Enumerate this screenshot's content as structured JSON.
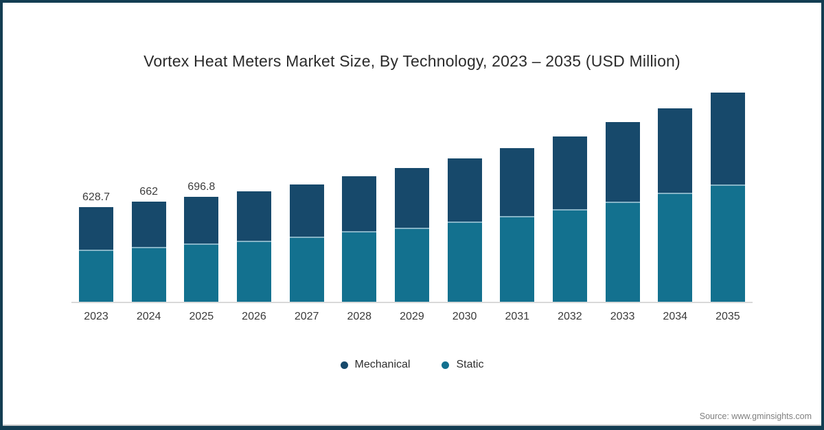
{
  "title": "Vortex Heat Meters Market Size, By Technology, 2023 – 2035 (USD Million)",
  "source": "Source: www.gminsights.com",
  "colors": {
    "mechanical": "#17496b",
    "static": "#13718f",
    "frame": "#133d52",
    "axis_line": "#d9d9d9",
    "segment_divider": "#86b3c6",
    "title_text": "#2b2b2b",
    "label_text": "#3d3d3d",
    "source_text": "#7f7f7f"
  },
  "legend": {
    "items": [
      {
        "label": "Mechanical",
        "color": "#17496b"
      },
      {
        "label": "Static",
        "color": "#13718f"
      }
    ]
  },
  "chart_data": {
    "type": "bar",
    "stacked": true,
    "title": "Vortex Heat Meters Market Size, By Technology, 2023 – 2035 (USD Million)",
    "xlabel": "",
    "ylabel": "",
    "unit": "USD Million",
    "grid": false,
    "legend_position": "bottom",
    "ylim": [
      0,
      1400
    ],
    "categories": [
      "2023",
      "2024",
      "2025",
      "2026",
      "2027",
      "2028",
      "2029",
      "2030",
      "2031",
      "2032",
      "2033",
      "2034",
      "2035"
    ],
    "series": [
      {
        "name": "Mechanical",
        "color": "#17496b",
        "values": [
          283.2,
          298,
          310.8,
          328,
          343,
          364,
          395,
          418,
          450,
          483,
          528,
          560,
          609
        ]
      },
      {
        "name": "Static",
        "color": "#13718f",
        "values": [
          345.5,
          364,
          386,
          406,
          434,
          467,
          492,
          530,
          568,
          614,
          662,
          724,
          777
        ]
      }
    ],
    "totals": [
      628.7,
      662,
      696.8,
      734,
      777,
      831,
      887,
      948,
      1018,
      1097,
      1190,
      1284,
      1386
    ],
    "bar_labels": [
      "628.7",
      "662",
      "696.8",
      "",
      "",
      "",
      "",
      "",
      "",
      "",
      "",
      "",
      ""
    ]
  }
}
